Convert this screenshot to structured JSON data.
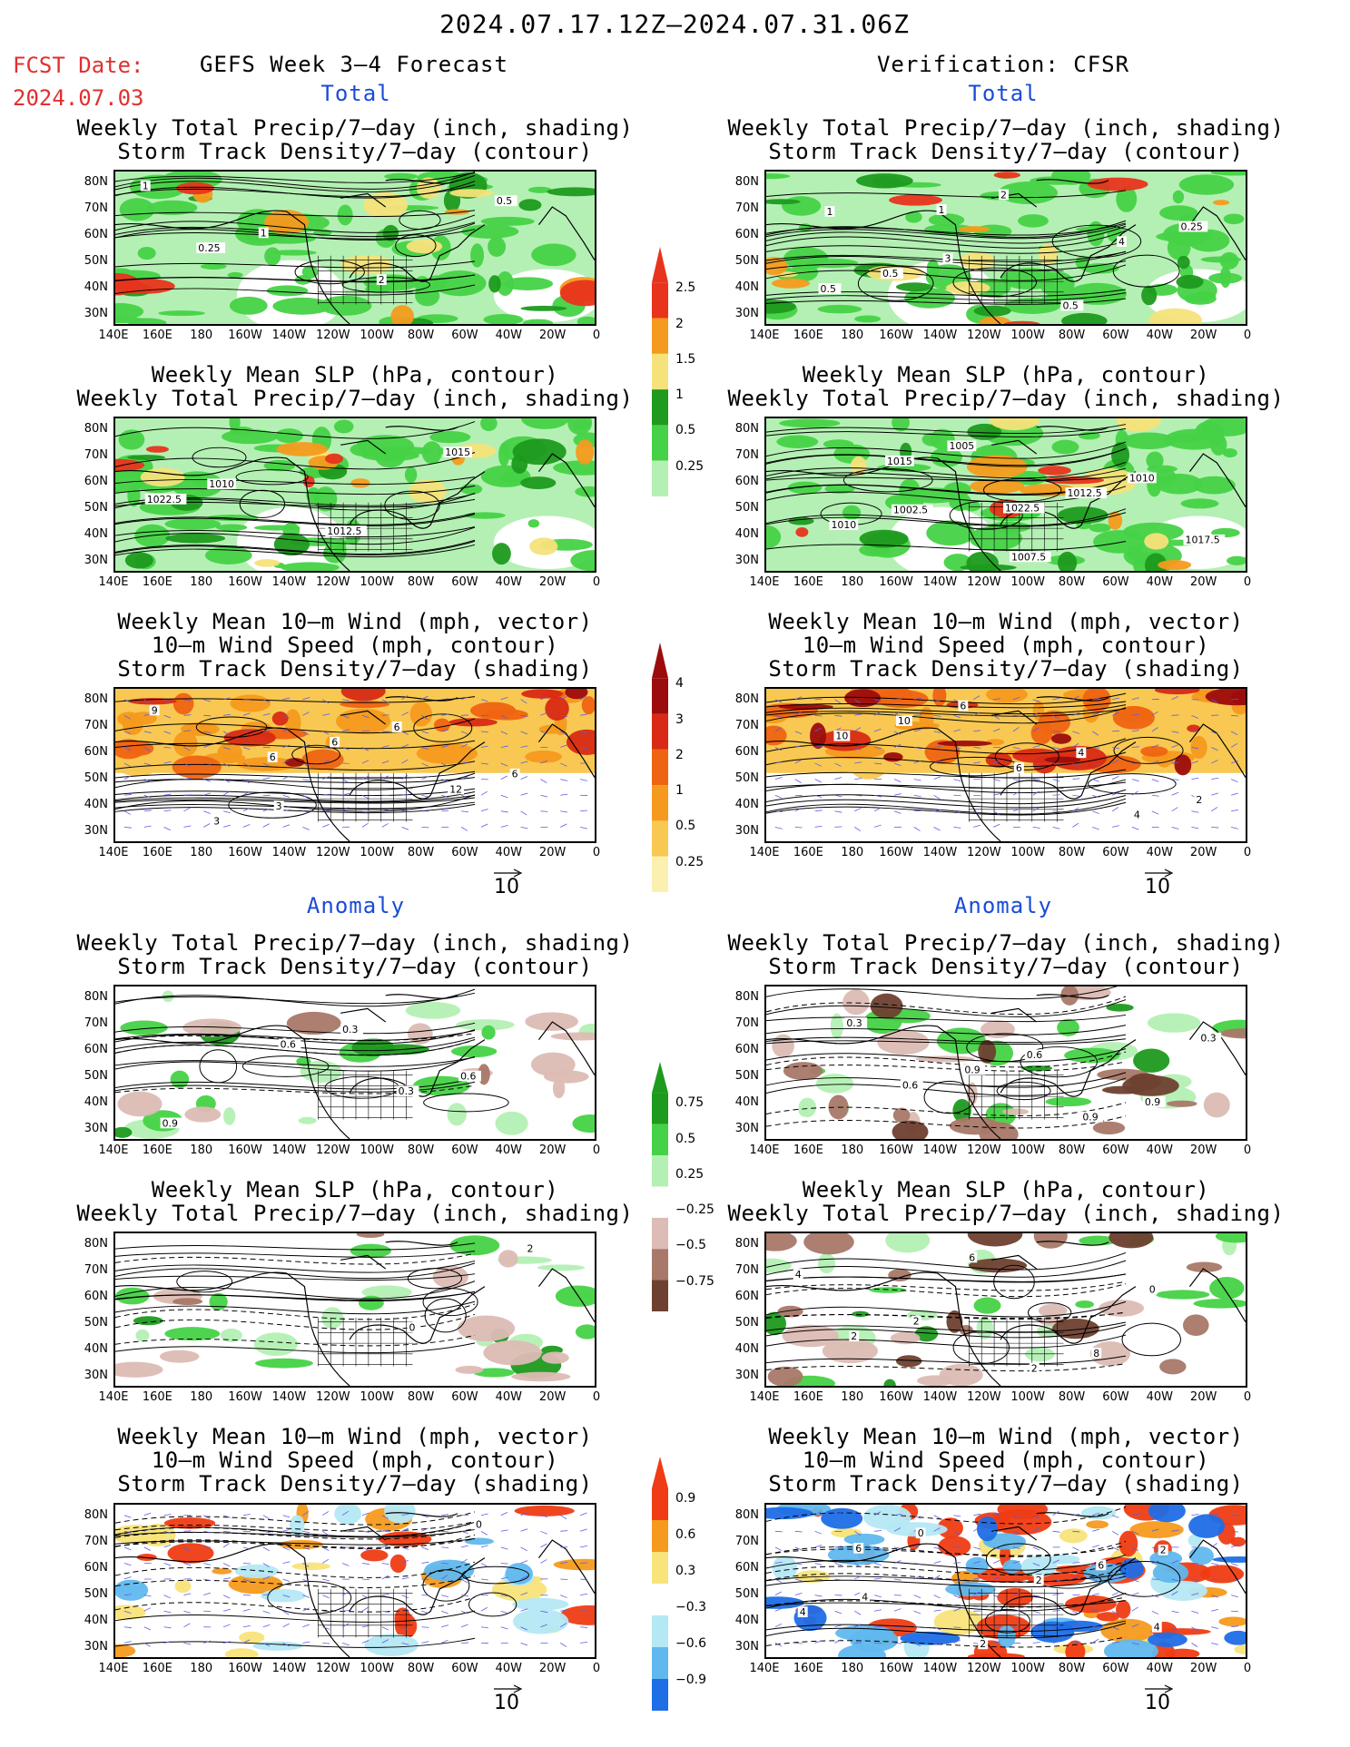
{
  "header": {
    "date_range": "2024.07.17.12Z–2024.07.31.06Z",
    "fcst_label": "FCST Date:",
    "fcst_date": "2024.07.03",
    "left_title": "GEFS Week 3–4 Forecast",
    "right_title": "Verification: CFSR"
  },
  "sections": {
    "total": "Total",
    "anomaly": "Anomaly"
  },
  "titles": {
    "precip_storm": [
      "Weekly Total Precip/7–day (inch, shading)",
      "Storm Track Density/7–day (contour)"
    ],
    "slp_precip": [
      "Weekly Mean SLP (hPa, contour)",
      "Weekly Total Precip/7–day (inch, shading)"
    ],
    "wind": [
      "Weekly Mean 10–m Wind (mph, vector)",
      "10–m Wind Speed (mph, contour)",
      "Storm Track Density/7–day (shading)"
    ]
  },
  "axes": {
    "lat_ticks": [
      "80N",
      "70N",
      "60N",
      "50N",
      "40N",
      "30N"
    ],
    "lon_ticks": [
      "140E",
      "160E",
      "180",
      "160W",
      "140W",
      "120W",
      "100W",
      "80W",
      "60W",
      "40W",
      "20W",
      "0"
    ]
  },
  "vector_ref": "10",
  "colorbars": {
    "precip_total": {
      "labels": [
        "2.5",
        "2",
        "1.5",
        "1",
        "0.5",
        "0.25"
      ],
      "colors": [
        "#e8341c",
        "#f59a1e",
        "#f5e27a",
        "#1e9a1e",
        "#46d246",
        "#b4f0b4"
      ]
    },
    "storm_total": {
      "labels": [
        "4",
        "3",
        "2",
        "1",
        "0.5",
        "0.25"
      ],
      "colors": [
        "#9c0c0c",
        "#d82a14",
        "#ef6412",
        "#f59a1e",
        "#f8c852",
        "#fbf0b0"
      ]
    },
    "precip_anom": {
      "labels": [
        "0.75",
        "0.5",
        "0.25",
        "−0.25",
        "−0.5",
        "−0.75"
      ],
      "colors": [
        "#1e9a1e",
        "#46d246",
        "#b4f0b4",
        "#ffffff",
        "#dcbcb4",
        "#a87868",
        "#6e4030"
      ]
    },
    "storm_anom": {
      "labels": [
        "0.9",
        "0.6",
        "0.3",
        "−0.3",
        "−0.6",
        "−0.9"
      ],
      "colors": [
        "#ef3c14",
        "#f59a1e",
        "#f8e47a",
        "#ffffff",
        "#b4e8f4",
        "#60b8ee",
        "#1e6ee6"
      ]
    }
  },
  "contour_labels": {
    "lt": [
      "1",
      "1",
      "2",
      "0.5",
      "0.25"
    ],
    "rt": [
      "1",
      "3",
      "0.5",
      "0.25",
      "0.5",
      "2",
      "4",
      "0.5",
      "1"
    ],
    "lm": [
      "1010",
      "1012.5",
      "1015",
      "1022.5"
    ],
    "rm": [
      "1002.5",
      "1007.5",
      "1010",
      "1010",
      "1005",
      "1012.5",
      "1017.5",
      "1015",
      "1022.5"
    ],
    "lw": [
      "3",
      "6",
      "6",
      "3",
      "6",
      "12",
      "9",
      "6"
    ],
    "rw": [
      "6",
      "4",
      "2",
      "10",
      "6",
      "4",
      "10"
    ],
    "la1": [
      "0.3",
      "0.6",
      "0.9",
      "0.6",
      "0.3"
    ],
    "ra1": [
      "0.6",
      "0.9",
      "0.3",
      "0.9",
      "0.9",
      "0.3",
      "0.6"
    ],
    "la2": [
      "0",
      "2"
    ],
    "ra2": [
      "8",
      "4",
      "2",
      "2",
      "0",
      "2",
      "6"
    ],
    "la3": [
      "0"
    ],
    "ra3": [
      "2",
      "4",
      "2",
      "6",
      "4",
      "0",
      "2",
      "4",
      "6"
    ]
  }
}
